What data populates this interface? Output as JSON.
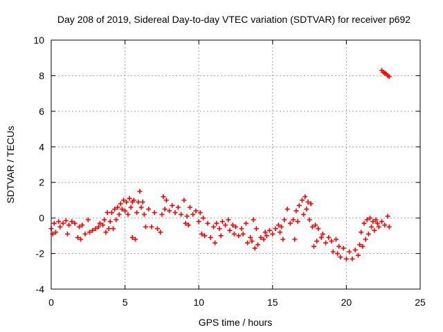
{
  "chart_data": {
    "type": "scatter",
    "title": "Day 208 of 2019, Sidereal Day-to-day VTEC variation (SDTVAR) for receiver p692",
    "xlabel": "GPS time / hours",
    "ylabel": "SDTVAR / TECUs",
    "xlim": [
      0,
      25
    ],
    "ylim": [
      -4,
      10
    ],
    "xticks": [
      0,
      5,
      10,
      15,
      20,
      25
    ],
    "yticks": [
      -4,
      -2,
      0,
      2,
      4,
      6,
      8,
      10
    ],
    "grid": true,
    "marker": "+",
    "color": "#ff0000",
    "series": [
      {
        "name": "SDTVAR",
        "points": [
          [
            0.0,
            -0.6
          ],
          [
            0.1,
            -0.9
          ],
          [
            0.2,
            -0.3
          ],
          [
            0.3,
            -0.8
          ],
          [
            0.5,
            -0.2
          ],
          [
            0.6,
            -0.5
          ],
          [
            0.8,
            -0.3
          ],
          [
            1.0,
            -0.15
          ],
          [
            1.1,
            -0.9
          ],
          [
            1.2,
            -0.4
          ],
          [
            1.4,
            -0.2
          ],
          [
            1.6,
            -0.3
          ],
          [
            1.8,
            -1.1
          ],
          [
            1.9,
            -0.5
          ],
          [
            2.0,
            -1.2
          ],
          [
            2.1,
            -0.4
          ],
          [
            2.3,
            -0.9
          ],
          [
            2.5,
            -0.1
          ],
          [
            2.6,
            -0.8
          ],
          [
            2.8,
            -0.7
          ],
          [
            3.0,
            -0.6
          ],
          [
            3.2,
            -0.5
          ],
          [
            3.3,
            -0.3
          ],
          [
            3.5,
            -0.4
          ],
          [
            3.6,
            -0.1
          ],
          [
            3.7,
            -0.8
          ],
          [
            3.8,
            0.3
          ],
          [
            3.9,
            -0.6
          ],
          [
            4.0,
            -0.2
          ],
          [
            4.1,
            0.3
          ],
          [
            4.2,
            -0.6
          ],
          [
            4.3,
            0.5
          ],
          [
            4.4,
            -0.1
          ],
          [
            4.5,
            0.6
          ],
          [
            4.6,
            0.2
          ],
          [
            4.7,
            0.8
          ],
          [
            4.8,
            0.5
          ],
          [
            4.9,
            1.0
          ],
          [
            5.0,
            0.4
          ],
          [
            5.1,
            0.9
          ],
          [
            5.2,
            0.2
          ],
          [
            5.3,
            1.1
          ],
          [
            5.4,
            0.6
          ],
          [
            5.5,
            0.9
          ],
          [
            5.6,
            1.0
          ],
          [
            5.5,
            -1.1
          ],
          [
            5.7,
            -1.2
          ],
          [
            5.8,
            0.3
          ],
          [
            5.9,
            0.9
          ],
          [
            6.0,
            1.5
          ],
          [
            6.1,
            0.6
          ],
          [
            6.2,
            0.9
          ],
          [
            6.3,
            0.2
          ],
          [
            6.4,
            -0.5
          ],
          [
            6.6,
            0.5
          ],
          [
            6.8,
            -0.5
          ],
          [
            7.0,
            0.3
          ],
          [
            7.2,
            -0.6
          ],
          [
            7.4,
            -0.8
          ],
          [
            7.5,
            0.2
          ],
          [
            7.6,
            1.2
          ],
          [
            7.7,
            0.5
          ],
          [
            7.8,
            1.0
          ],
          [
            8.0,
            0.4
          ],
          [
            8.2,
            0.7
          ],
          [
            8.4,
            0.3
          ],
          [
            8.6,
            0.6
          ],
          [
            8.8,
            0.2
          ],
          [
            9.0,
            1.0
          ],
          [
            9.1,
            -0.3
          ],
          [
            9.2,
            0.1
          ],
          [
            9.3,
            -0.4
          ],
          [
            9.4,
            0.6
          ],
          [
            9.6,
            0.2
          ],
          [
            9.8,
            0.4
          ],
          [
            10.0,
            -0.2
          ],
          [
            10.1,
            0.3
          ],
          [
            10.2,
            -0.9
          ],
          [
            10.3,
            0.0
          ],
          [
            10.4,
            -1.0
          ],
          [
            10.6,
            -0.3
          ],
          [
            10.8,
            -1.1
          ],
          [
            11.0,
            -0.5
          ],
          [
            11.1,
            -1.4
          ],
          [
            11.2,
            -0.3
          ],
          [
            11.4,
            -0.6
          ],
          [
            11.5,
            -1.0
          ],
          [
            11.6,
            -0.2
          ],
          [
            11.8,
            -0.4
          ],
          [
            12.0,
            -0.1
          ],
          [
            12.1,
            -0.7
          ],
          [
            12.3,
            -0.4
          ],
          [
            12.4,
            -0.9
          ],
          [
            12.5,
            -0.5
          ],
          [
            12.7,
            -1.0
          ],
          [
            12.9,
            -0.6
          ],
          [
            13.0,
            -0.9
          ],
          [
            13.2,
            -0.3
          ],
          [
            13.3,
            -1.4
          ],
          [
            13.5,
            -1.1
          ],
          [
            13.6,
            -1.3
          ],
          [
            13.7,
            -0.1
          ],
          [
            13.8,
            -1.7
          ],
          [
            13.9,
            -0.6
          ],
          [
            14.0,
            -1.5
          ],
          [
            14.2,
            -1.1
          ],
          [
            14.4,
            -1.2
          ],
          [
            14.5,
            -0.8
          ],
          [
            14.6,
            -1.0
          ],
          [
            14.8,
            -0.7
          ],
          [
            15.0,
            -0.9
          ],
          [
            15.2,
            -0.6
          ],
          [
            15.4,
            -0.4
          ],
          [
            15.5,
            -0.8
          ],
          [
            15.6,
            -0.5
          ],
          [
            15.7,
            -1.2
          ],
          [
            15.8,
            -0.1
          ],
          [
            16.0,
            0.5
          ],
          [
            16.2,
            -0.3
          ],
          [
            16.4,
            -0.1
          ],
          [
            16.5,
            -1.2
          ],
          [
            16.6,
            0.4
          ],
          [
            16.7,
            -0.2
          ],
          [
            16.8,
            0.7
          ],
          [
            17.0,
            1.0
          ],
          [
            17.1,
            0.2
          ],
          [
            17.2,
            1.2
          ],
          [
            17.3,
            0.5
          ],
          [
            17.4,
            0.9
          ],
          [
            17.5,
            -0.1
          ],
          [
            17.6,
            0.8
          ],
          [
            17.7,
            -0.5
          ],
          [
            17.8,
            -1.6
          ],
          [
            17.9,
            -0.4
          ],
          [
            18.0,
            -1.3
          ],
          [
            18.1,
            -0.6
          ],
          [
            18.3,
            -1.1
          ],
          [
            18.4,
            -0.9
          ],
          [
            18.6,
            -1.4
          ],
          [
            18.8,
            -1.1
          ],
          [
            19.0,
            -1.3
          ],
          [
            19.1,
            -1.9
          ],
          [
            19.3,
            -1.2
          ],
          [
            19.4,
            -2.0
          ],
          [
            19.5,
            -1.6
          ],
          [
            19.6,
            -2.2
          ],
          [
            19.8,
            -1.7
          ],
          [
            20.0,
            -2.3
          ],
          [
            20.2,
            -1.9
          ],
          [
            20.4,
            -2.3
          ],
          [
            20.6,
            -1.8
          ],
          [
            20.8,
            -2.1
          ],
          [
            20.9,
            -1.5
          ],
          [
            21.0,
            -0.8
          ],
          [
            21.1,
            -1.6
          ],
          [
            21.2,
            -0.3
          ],
          [
            21.3,
            -1.2
          ],
          [
            21.4,
            -0.1
          ],
          [
            21.5,
            -0.9
          ],
          [
            21.6,
            0.0
          ],
          [
            21.7,
            -0.5
          ],
          [
            21.8,
            -0.2
          ],
          [
            21.9,
            -0.7
          ],
          [
            22.0,
            -0.1
          ],
          [
            22.1,
            -0.3
          ],
          [
            22.2,
            -0.5
          ],
          [
            22.4,
            -0.2
          ],
          [
            22.6,
            -0.4
          ],
          [
            22.8,
            0.1
          ],
          [
            22.9,
            -0.5
          ],
          [
            22.4,
            8.3
          ],
          [
            22.5,
            8.2
          ],
          [
            22.6,
            8.15
          ],
          [
            22.7,
            8.1
          ],
          [
            22.8,
            8.0
          ],
          [
            22.9,
            7.95
          ]
        ]
      }
    ]
  }
}
